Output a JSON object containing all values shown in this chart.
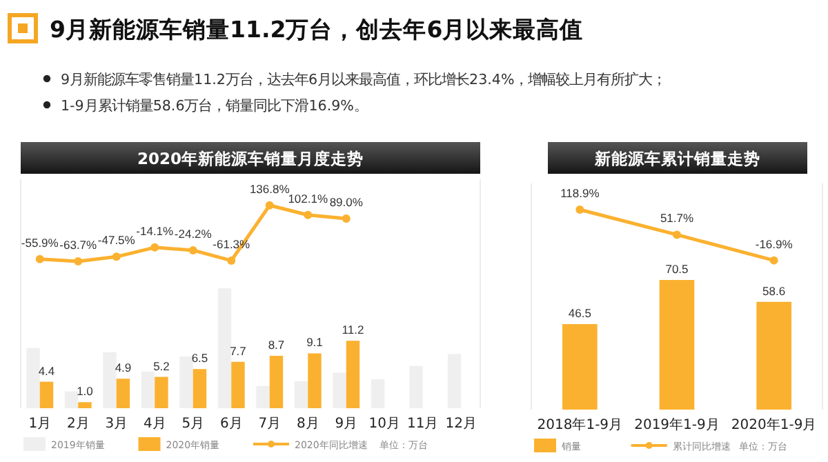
{
  "chart_data": [
    {
      "type": "other",
      "title": "9月新能源车销量11.2万台，创去年6月以来最高值",
      "annotations": [
        "9月新能源车零售销量11.2万台，达去年6月以来最高值，环比增长23.4%，增幅较上月有所扩大；",
        "1-9月累计销量58.6万台，销量同比下滑16.9%。"
      ]
    },
    {
      "type": "bar",
      "title": "2020年新能源车销量月度走势",
      "categories": [
        "1月",
        "2月",
        "3月",
        "4月",
        "5月",
        "6月",
        "7月",
        "8月",
        "9月",
        "10月",
        "11月",
        "12月"
      ],
      "ylim": [
        0,
        38
      ],
      "y2lim": [
        -590,
        230
      ],
      "tick_labels": "x",
      "legend": "bottom",
      "annotations": [
        "单位：万台"
      ],
      "series": [
        {
          "name": "2019年销量",
          "color": "#efefef",
          "values": [
            10.0,
            2.8,
            9.3,
            6.1,
            8.6,
            19.9,
            3.7,
            4.5,
            5.9,
            4.8,
            7.0,
            9.0
          ]
        },
        {
          "name": "2020年销量",
          "color": "#fbb130",
          "values": [
            4.4,
            1.0,
            4.9,
            5.2,
            6.5,
            7.7,
            8.7,
            9.1,
            11.2,
            null,
            null,
            null
          ],
          "value_labels": [
            "4.4",
            "1.0",
            "4.9",
            "5.2",
            "6.5",
            "7.7",
            "8.7",
            "9.1",
            "11.2",
            null,
            null,
            null
          ]
        },
        {
          "name": "2020年同比增速",
          "type": "line",
          "axis": "y2",
          "marker": "circle",
          "color": "#fbb130",
          "values": [
            -55.9,
            -63.7,
            -47.5,
            -14.1,
            -24.2,
            -61.3,
            136.8,
            102.1,
            89.0,
            null,
            null,
            null
          ],
          "value_labels": [
            "-55.9%",
            "-63.7%",
            "-47.5%",
            "-14.1%",
            "-24.2%",
            "-61.3%",
            "136.8%",
            "102.1%",
            "89.0%",
            null,
            null,
            null
          ]
        }
      ]
    },
    {
      "type": "bar",
      "title": "新能源车累计销量走势",
      "categories": [
        "2018年1-9月",
        "2019年1-9月",
        "2020年1-9月"
      ],
      "ylim": [
        0,
        123
      ],
      "y2lim": [
        -416,
        189
      ],
      "tick_labels": "x",
      "legend": "bottom",
      "annotations": [
        "单位：万台"
      ],
      "series": [
        {
          "name": "销量",
          "color": "#fbb130",
          "values": [
            46.5,
            70.5,
            58.6
          ],
          "value_labels": [
            "46.5",
            "70.5",
            "58.6"
          ]
        },
        {
          "name": "累计同比增速",
          "type": "line",
          "axis": "y2",
          "marker": "circle",
          "color": "#fbb130",
          "values": [
            118.9,
            51.7,
            -16.9
          ],
          "value_labels": [
            "118.9%",
            "51.7%",
            "-16.9%"
          ]
        }
      ]
    }
  ]
}
